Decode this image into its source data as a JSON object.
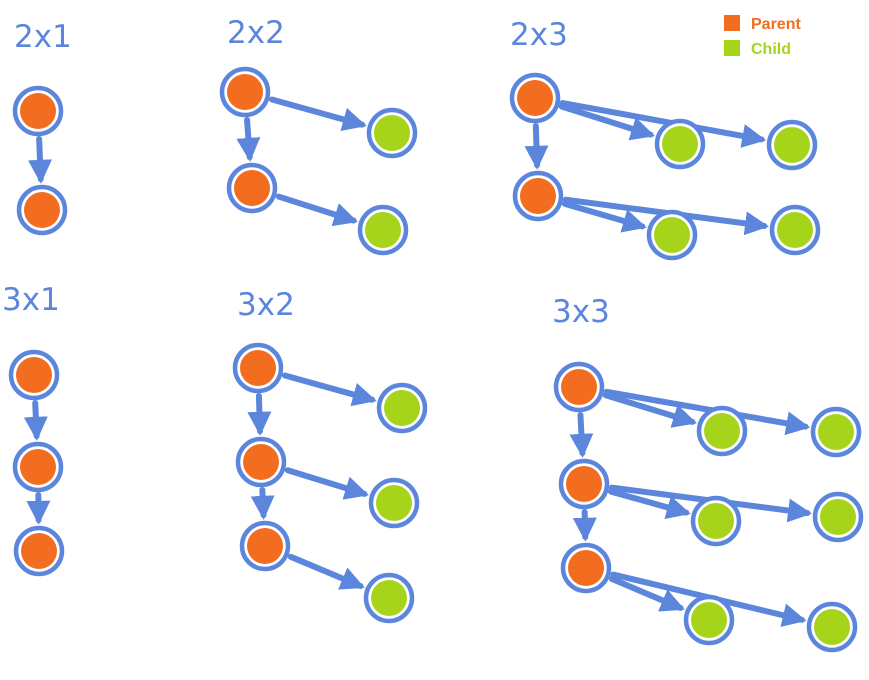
{
  "legend": {
    "parent_label": "Parent",
    "child_label": "Child",
    "parent_color": "#f26d1f",
    "child_color": "#a6d41a"
  },
  "edge_color": "#5b86dc",
  "groups": [
    {
      "id": "g-2x1",
      "label": "2x1",
      "parents": 2,
      "children_per_parent": 0
    },
    {
      "id": "g-2x2",
      "label": "2x2",
      "parents": 2,
      "children_per_parent": 1
    },
    {
      "id": "g-2x3",
      "label": "2x3",
      "parents": 2,
      "children_per_parent": 2
    },
    {
      "id": "g-3x1",
      "label": "3x1",
      "parents": 3,
      "children_per_parent": 0
    },
    {
      "id": "g-3x2",
      "label": "3x2",
      "parents": 3,
      "children_per_parent": 1
    },
    {
      "id": "g-3x3",
      "label": "3x3",
      "parents": 3,
      "children_per_parent": 2
    }
  ]
}
